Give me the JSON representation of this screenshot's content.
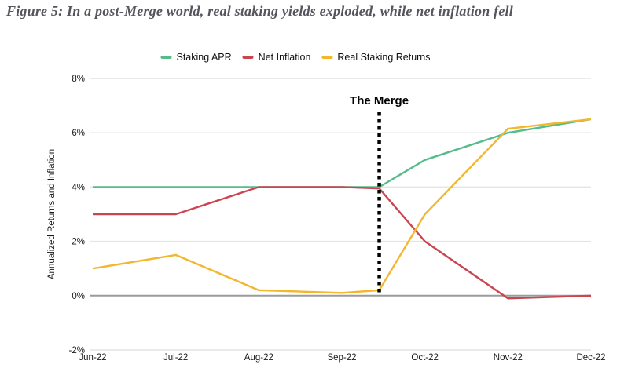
{
  "figure": {
    "title": "Figure 5: In a post-Merge world, real staking yields exploded, while net inflation fell"
  },
  "chart_data": {
    "type": "line",
    "title": "Figure 5: In a post-Merge world, real staking yields exploded, while net inflation fell",
    "ylabel": "Annualized Returns and Inflation",
    "xlabel": "",
    "x_tick_labels": [
      "Jun-22",
      "Jul-22",
      "Aug-22",
      "Sep-22",
      "Oct-22",
      "Nov-22",
      "Dec-22"
    ],
    "x_point_labels": [
      "Jun-22",
      "Jul-22",
      "Aug-22",
      "Sep-22",
      "The Merge (mid-Sep)",
      "Oct-22",
      "Nov-22",
      "Dec-22"
    ],
    "x_positions": [
      0,
      1,
      2,
      3,
      3.45,
      4,
      5,
      6
    ],
    "y_tick_labels": [
      "8%",
      "6%",
      "4%",
      "2%",
      "0%",
      "-2%"
    ],
    "y_tick_values": [
      8,
      6,
      4,
      2,
      0,
      -2
    ],
    "ylim": [
      -2,
      8
    ],
    "grid": "horizontal",
    "legend_position": "top",
    "series": [
      {
        "name": "Staking APR",
        "color": "#57bb8a",
        "values": [
          4.0,
          4.0,
          4.0,
          4.0,
          4.0,
          5.0,
          6.0,
          6.5
        ]
      },
      {
        "name": "Net Inflation",
        "color": "#cc4450",
        "values": [
          3.0,
          3.0,
          4.0,
          4.0,
          3.95,
          2.0,
          -0.1,
          0.0
        ]
      },
      {
        "name": "Real Staking Returns",
        "color": "#f2b72e",
        "values": [
          1.0,
          1.5,
          0.2,
          0.1,
          0.2,
          3.0,
          6.15,
          6.5
        ]
      }
    ],
    "annotation": {
      "label": "The Merge",
      "x_position": 3.45
    },
    "colors": {
      "grid": "#e4e4e4",
      "zero_line": "#9b9b9b",
      "annotation_line": "#000000",
      "tick_text": "#1a1a1a",
      "title_text": "#55555d"
    }
  }
}
